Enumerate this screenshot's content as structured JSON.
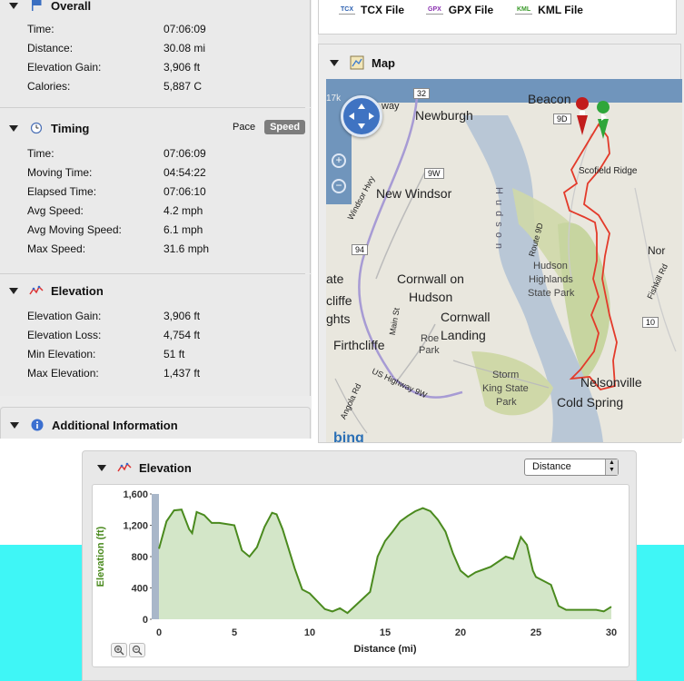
{
  "overall": {
    "title": "Overall",
    "rows": [
      {
        "label": "Time:",
        "value": "07:06:09"
      },
      {
        "label": "Distance:",
        "value": "30.08 mi"
      },
      {
        "label": "Elevation Gain:",
        "value": "3,906 ft"
      },
      {
        "label": "Calories:",
        "value": "5,887 C"
      }
    ]
  },
  "timing": {
    "title": "Timing",
    "pace_label": "Pace",
    "speed_label": "Speed",
    "rows": [
      {
        "label": "Time:",
        "value": "07:06:09"
      },
      {
        "label": "Moving Time:",
        "value": "04:54:22"
      },
      {
        "label": "Elapsed Time:",
        "value": "07:06:10"
      },
      {
        "label": "Avg Speed:",
        "value": "4.2 mph"
      },
      {
        "label": "Avg Moving Speed:",
        "value": "6.1 mph"
      },
      {
        "label": "Max Speed:",
        "value": "31.6 mph"
      }
    ]
  },
  "elevation_stats": {
    "title": "Elevation",
    "rows": [
      {
        "label": "Elevation Gain:",
        "value": "3,906 ft"
      },
      {
        "label": "Elevation Loss:",
        "value": "4,754 ft"
      },
      {
        "label": "Min Elevation:",
        "value": "51 ft"
      },
      {
        "label": "Max Elevation:",
        "value": "1,437 ft"
      }
    ]
  },
  "additional": {
    "title": "Additional Information"
  },
  "exports": {
    "tcx_icon": "TCX",
    "tcx": "TCX File",
    "gpx_icon": "GPX",
    "gpx": "GPX File",
    "kml_icon": "KML",
    "kml": "KML File"
  },
  "map": {
    "title": "Map",
    "labels": {
      "beacon": "Beacon",
      "newburgh": "Newburgh",
      "new_windsor": "New Windsor",
      "scofield": "Scofield Ridge",
      "cornwall_hudson_1": "Cornwall on",
      "cornwall_hudson_2": "Hudson",
      "cornwall_landing_1": "Cornwall",
      "cornwall_landing_2": "Landing",
      "firthcliffe": "Firthcliffe",
      "roe_park_1": "Roe",
      "roe_park_2": "Park",
      "hhsp_1": "Hudson",
      "hhsp_2": "Highlands",
      "hhsp_3": "State Park",
      "storm_king_1": "Storm",
      "storm_king_2": "King State",
      "storm_king_3": "Park",
      "nelsonville": "Nelsonville",
      "cold_spring": "Cold Spring",
      "hudson_river": "Hudson",
      "route_9d": "Route 9D",
      "windsor_hwy": "Windsor Hwy",
      "main_st": "Main St",
      "us_9w": "US Highway 9W",
      "angola_rd": "Angola Rd",
      "fishkill": "Fishkill Rd",
      "badge_9d": "9D",
      "badge_9w": "9W",
      "badge_94": "94",
      "badge_10": "10",
      "badge_32": "32",
      "ate": "ate",
      "cliffe": "cliffe",
      "ghts": "ghts",
      "nor": "Nor",
      "way": "way",
      "seventeen_k": "17k",
      "bing": "bing"
    }
  },
  "elevation_chart": {
    "title": "Elevation",
    "dropdown_value": "Distance",
    "zoom_in_icon": "zoom-in-icon",
    "zoom_out_icon": "zoom-out-icon"
  },
  "chart_data": {
    "type": "area",
    "xlabel": "Distance (mi)",
    "ylabel": "Elevation (ft)",
    "xlim": [
      0,
      30
    ],
    "ylim": [
      0,
      1600
    ],
    "xticks": [
      "0",
      "5",
      "10",
      "15",
      "20",
      "25",
      "30"
    ],
    "yticks": [
      "0",
      "400",
      "800",
      "1,200",
      "1,600"
    ],
    "color": "#4a8a1e",
    "fill": "#d3e6c8",
    "x": [
      0,
      0.5,
      1,
      1.5,
      2,
      2.2,
      2.5,
      3,
      3.5,
      4,
      5,
      5.5,
      6,
      6.5,
      7,
      7.5,
      7.8,
      8.2,
      9,
      9.5,
      10,
      11,
      11.5,
      12,
      12.5,
      13,
      14,
      14.5,
      15,
      15.5,
      16,
      16.5,
      17,
      17.5,
      18,
      18.5,
      19,
      19.5,
      20,
      20.5,
      21,
      22,
      23,
      23.5,
      24,
      24.4,
      24.8,
      25,
      26,
      26.5,
      27,
      28,
      29,
      29.5,
      30
    ],
    "y": [
      900,
      1250,
      1390,
      1400,
      1150,
      1100,
      1370,
      1330,
      1230,
      1230,
      1200,
      880,
      800,
      920,
      1180,
      1360,
      1340,
      1150,
      650,
      380,
      330,
      130,
      100,
      140,
      80,
      170,
      350,
      800,
      1000,
      1120,
      1250,
      1320,
      1380,
      1420,
      1380,
      1270,
      1120,
      840,
      620,
      540,
      600,
      670,
      800,
      770,
      1050,
      950,
      620,
      540,
      440,
      170,
      120,
      120,
      120,
      100,
      160
    ]
  }
}
